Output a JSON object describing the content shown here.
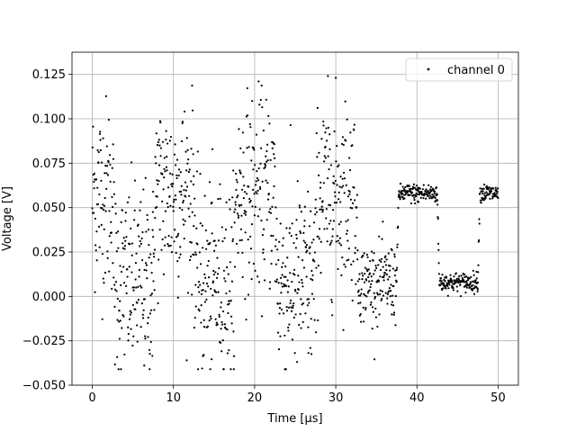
{
  "chart_data": {
    "type": "scatter",
    "xlabel": "Time [μs]",
    "ylabel": "Voltage [V]",
    "xlim": [
      -2.5,
      52.5
    ],
    "ylim": [
      -0.05,
      0.1375
    ],
    "xticks": [
      0,
      10,
      20,
      30,
      40,
      50
    ],
    "xtick_labels": [
      "0",
      "10",
      "20",
      "30",
      "40",
      "50"
    ],
    "yticks": [
      -0.05,
      -0.025,
      0.0,
      0.025,
      0.05,
      0.075,
      0.1,
      0.125
    ],
    "ytick_labels": [
      "−0.050",
      "−0.025",
      "0.000",
      "0.025",
      "0.050",
      "0.075",
      "0.100",
      "0.125"
    ],
    "grid": true,
    "legend_position": "top-right",
    "marker_color": "#000000",
    "series": [
      {
        "name": "channel 0",
        "description": "noisy square-wave signal, alternating high/low levels",
        "segments": [
          {
            "x_start": 0.0,
            "x_end": 2.5,
            "level": 0.058,
            "noise": 0.03
          },
          {
            "x_start": 2.5,
            "x_end": 7.5,
            "level": 0.008,
            "noise": 0.03
          },
          {
            "x_start": 7.5,
            "x_end": 12.5,
            "level": 0.058,
            "noise": 0.03
          },
          {
            "x_start": 12.5,
            "x_end": 17.5,
            "level": 0.008,
            "noise": 0.03
          },
          {
            "x_start": 17.5,
            "x_end": 22.5,
            "level": 0.058,
            "noise": 0.03
          },
          {
            "x_start": 22.5,
            "x_end": 27.5,
            "level": 0.008,
            "noise": 0.03
          },
          {
            "x_start": 27.5,
            "x_end": 32.5,
            "level": 0.058,
            "noise": 0.03
          },
          {
            "x_start": 32.5,
            "x_end": 37.5,
            "level": 0.008,
            "noise": 0.012
          },
          {
            "x_start": 37.5,
            "x_end": 42.5,
            "level": 0.058,
            "noise": 0.003
          },
          {
            "x_start": 42.5,
            "x_end": 47.5,
            "level": 0.008,
            "noise": 0.003
          },
          {
            "x_start": 47.5,
            "x_end": 50.0,
            "level": 0.058,
            "noise": 0.003
          }
        ],
        "samples_per_us": 30
      }
    ]
  }
}
